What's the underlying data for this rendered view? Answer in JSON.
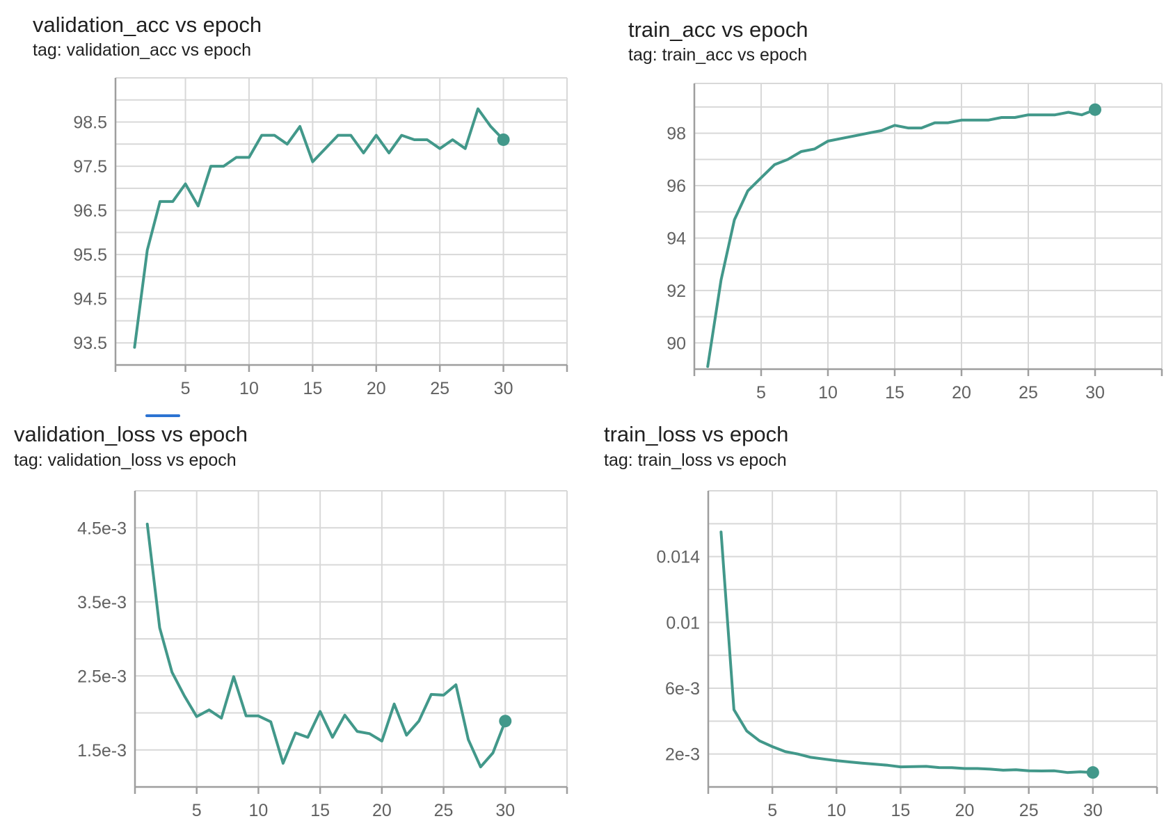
{
  "chart_data": [
    {
      "id": "validation_acc",
      "type": "line",
      "title": "validation_acc vs epoch",
      "subtitle": "tag: validation_acc vs epoch",
      "x": [
        1,
        2,
        3,
        4,
        5,
        6,
        7,
        8,
        9,
        10,
        11,
        12,
        13,
        14,
        15,
        16,
        17,
        18,
        19,
        20,
        21,
        22,
        23,
        24,
        25,
        26,
        27,
        28,
        29,
        30
      ],
      "y": [
        93.4,
        95.6,
        96.7,
        96.7,
        97.1,
        96.6,
        97.5,
        97.5,
        97.7,
        97.7,
        98.2,
        98.2,
        98.0,
        98.4,
        97.6,
        97.9,
        98.2,
        98.2,
        97.8,
        98.2,
        97.8,
        98.2,
        98.1,
        98.1,
        97.9,
        98.1,
        97.9,
        98.8,
        98.4,
        98.1
      ],
      "xlim": [
        -0.5,
        35
      ],
      "ylim": [
        93.0,
        99.5
      ],
      "xticks": [
        5,
        10,
        15,
        20,
        25,
        30
      ],
      "yticks": [
        93.5,
        94.5,
        95.5,
        96.5,
        97.5,
        98.5
      ],
      "ytick_labels": [
        "93.5",
        "94.5",
        "95.5",
        "96.5",
        "97.5",
        "98.5"
      ],
      "grid": true,
      "color": "#42988a"
    },
    {
      "id": "train_acc",
      "type": "line",
      "title": "train_acc vs epoch",
      "subtitle": "tag: train_acc vs epoch",
      "x": [
        1,
        2,
        3,
        4,
        5,
        6,
        7,
        8,
        9,
        10,
        11,
        12,
        13,
        14,
        15,
        16,
        17,
        18,
        19,
        20,
        21,
        22,
        23,
        24,
        25,
        26,
        27,
        28,
        29,
        30
      ],
      "y": [
        89.1,
        92.4,
        94.7,
        95.8,
        96.3,
        96.8,
        97.0,
        97.3,
        97.4,
        97.7,
        97.8,
        97.9,
        98.0,
        98.1,
        98.3,
        98.2,
        98.2,
        98.4,
        98.4,
        98.5,
        98.5,
        98.5,
        98.6,
        98.6,
        98.7,
        98.7,
        98.7,
        98.8,
        98.7,
        98.9
      ],
      "xlim": [
        0,
        35
      ],
      "ylim": [
        89.0,
        99.9
      ],
      "xticks": [
        5,
        10,
        15,
        20,
        25,
        30
      ],
      "yticks": [
        90,
        92,
        94,
        96,
        98
      ],
      "ytick_labels": [
        "90",
        "92",
        "94",
        "96",
        "98"
      ],
      "grid": true,
      "color": "#42988a"
    },
    {
      "id": "validation_loss",
      "type": "line",
      "title": "validation_loss vs epoch",
      "subtitle": "tag: validation_loss vs epoch",
      "x": [
        1,
        2,
        3,
        4,
        5,
        6,
        7,
        8,
        9,
        10,
        11,
        12,
        13,
        14,
        15,
        16,
        17,
        18,
        19,
        20,
        21,
        22,
        23,
        24,
        25,
        26,
        27,
        28,
        29,
        30
      ],
      "y": [
        0.00455,
        0.00315,
        0.00255,
        0.00223,
        0.00195,
        0.00204,
        0.00193,
        0.00249,
        0.00196,
        0.00196,
        0.00188,
        0.00132,
        0.00173,
        0.00167,
        0.00202,
        0.00167,
        0.00197,
        0.00175,
        0.00172,
        0.00162,
        0.00212,
        0.0017,
        0.00189,
        0.00225,
        0.00224,
        0.00238,
        0.00164,
        0.00127,
        0.00146,
        0.00189
      ],
      "xlim": [
        0,
        35
      ],
      "ylim": [
        0.001,
        0.005
      ],
      "xticks": [
        5,
        10,
        15,
        20,
        25,
        30
      ],
      "yticks": [
        0.0015,
        0.0025,
        0.0035,
        0.0045
      ],
      "ytick_labels": [
        "1.5e-3",
        "2.5e-3",
        "3.5e-3",
        "4.5e-3"
      ],
      "grid": true,
      "color": "#42988a"
    },
    {
      "id": "train_loss",
      "type": "line",
      "title": "train_loss vs epoch",
      "subtitle": "tag: train_loss vs epoch",
      "x": [
        1,
        2,
        3,
        4,
        5,
        6,
        7,
        8,
        9,
        10,
        11,
        12,
        13,
        14,
        15,
        16,
        17,
        18,
        19,
        20,
        21,
        22,
        23,
        24,
        25,
        26,
        27,
        28,
        29,
        30
      ],
      "y": [
        0.0155,
        0.0047,
        0.0034,
        0.0028,
        0.00245,
        0.00215,
        0.002,
        0.0018,
        0.0017,
        0.0016,
        0.00152,
        0.00145,
        0.00138,
        0.00132,
        0.00122,
        0.00124,
        0.00125,
        0.00118,
        0.00117,
        0.00112,
        0.00112,
        0.00108,
        0.00102,
        0.00105,
        0.00098,
        0.00097,
        0.00098,
        0.00088,
        0.00092,
        0.00088
      ],
      "xlim": [
        0,
        35
      ],
      "ylim": [
        0.0,
        0.018
      ],
      "xticks": [
        5,
        10,
        15,
        20,
        25,
        30
      ],
      "yticks": [
        0.002,
        0.006,
        0.01,
        0.014
      ],
      "ytick_labels": [
        "2e-3",
        "6e-3",
        "0.01",
        "0.014"
      ],
      "grid": true,
      "color": "#42988a"
    }
  ]
}
